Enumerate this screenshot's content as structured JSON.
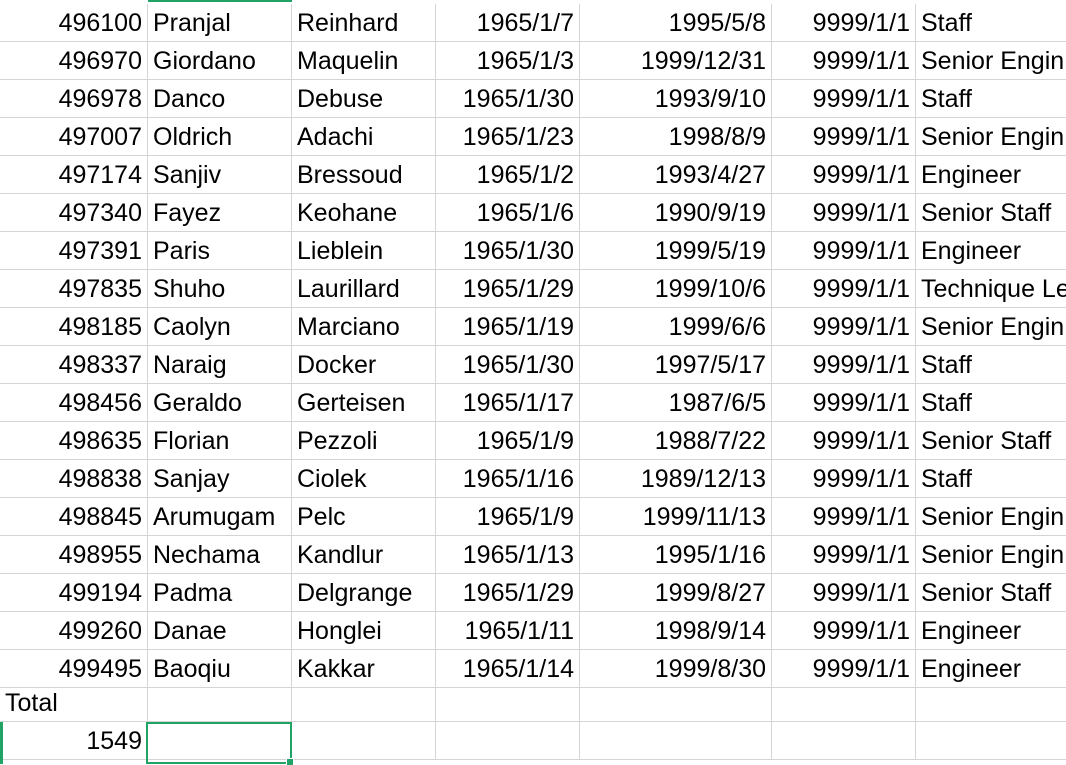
{
  "rows": [
    [
      "496100",
      "Pranjal",
      "Reinhard",
      "1965/1/7",
      "1995/5/8",
      "9999/1/1",
      "Staff"
    ],
    [
      "496970",
      "Giordano",
      "Maquelin",
      "1965/1/3",
      "1999/12/31",
      "9999/1/1",
      "Senior Engin"
    ],
    [
      "496978",
      "Danco",
      "Debuse",
      "1965/1/30",
      "1993/9/10",
      "9999/1/1",
      "Staff"
    ],
    [
      "497007",
      "Oldrich",
      "Adachi",
      "1965/1/23",
      "1998/8/9",
      "9999/1/1",
      "Senior Engin"
    ],
    [
      "497174",
      "Sanjiv",
      "Bressoud",
      "1965/1/2",
      "1993/4/27",
      "9999/1/1",
      "Engineer"
    ],
    [
      "497340",
      "Fayez",
      "Keohane",
      "1965/1/6",
      "1990/9/19",
      "9999/1/1",
      "Senior Staff"
    ],
    [
      "497391",
      "Paris",
      "Lieblein",
      "1965/1/30",
      "1999/5/19",
      "9999/1/1",
      "Engineer"
    ],
    [
      "497835",
      "Shuho",
      "Laurillard",
      "1965/1/29",
      "1999/10/6",
      "9999/1/1",
      "Technique Le"
    ],
    [
      "498185",
      "Caolyn",
      "Marciano",
      "1965/1/19",
      "1999/6/6",
      "9999/1/1",
      "Senior Engin"
    ],
    [
      "498337",
      "Naraig",
      "Docker",
      "1965/1/30",
      "1997/5/17",
      "9999/1/1",
      "Staff"
    ],
    [
      "498456",
      "Geraldo",
      "Gerteisen",
      "1965/1/17",
      "1987/6/5",
      "9999/1/1",
      "Staff"
    ],
    [
      "498635",
      "Florian",
      "Pezzoli",
      "1965/1/9",
      "1988/7/22",
      "9999/1/1",
      "Senior Staff"
    ],
    [
      "498838",
      "Sanjay",
      "Ciolek",
      "1965/1/16",
      "1989/12/13",
      "9999/1/1",
      "Staff"
    ],
    [
      "498845",
      "Arumugam",
      "Pelc",
      "1965/1/9",
      "1999/11/13",
      "9999/1/1",
      "Senior Engin"
    ],
    [
      "498955",
      "Nechama",
      "Kandlur",
      "1965/1/13",
      "1995/1/16",
      "9999/1/1",
      "Senior Engin"
    ],
    [
      "499194",
      "Padma",
      "Delgrange",
      "1965/1/29",
      "1999/8/27",
      "9999/1/1",
      "Senior Staff"
    ],
    [
      "499260",
      "Danae",
      "Honglei",
      "1965/1/11",
      "1998/9/14",
      "9999/1/1",
      "Engineer"
    ],
    [
      "499495",
      "Baoqiu",
      "Kakkar",
      "1965/1/14",
      "1999/8/30",
      "9999/1/1",
      "Engineer"
    ]
  ],
  "total_label": "Total",
  "total_value": "1549",
  "selected_cell_value": "",
  "colors": {
    "gridline": "#d4d4d4",
    "selection": "#21a366"
  }
}
